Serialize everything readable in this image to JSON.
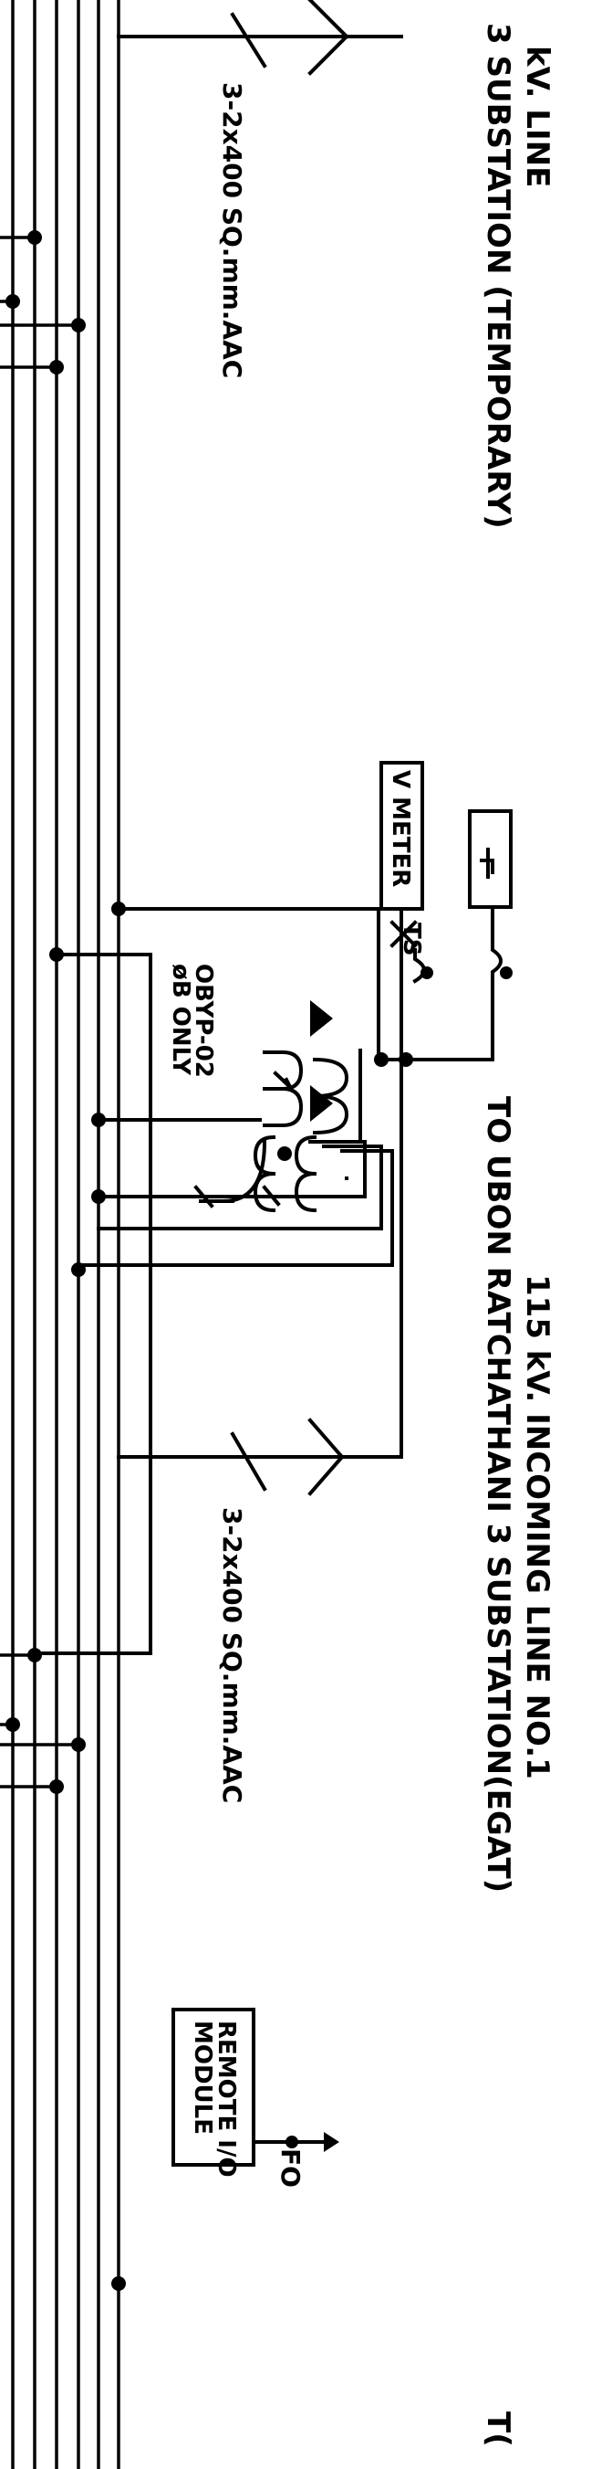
{
  "labels": {
    "line_kv_top": "kV. LINE",
    "substation_temp": "3 SUBSTATION (TEMPORARY)",
    "conductor_1": "3-2x400 SQ.mm.AAC",
    "incoming_line": "115 kV. INCOMING LINE NO.1",
    "to_ubon": "TO UBON RATCHATHANI 3 SUBSTATION(EGAT)",
    "conductor_2": "3-2x400 SQ.mm.AAC",
    "v_meter": "V METER",
    "ts": "TS",
    "obyp": "OBYP-02",
    "phase_only": "øB ONLY",
    "remote_io_1": "REMOTE I/O",
    "remote_io_2": "MODULE",
    "fo": "FO",
    "edge_text": "T("
  },
  "icons": {
    "lightning_arrester": "lightning-arrester-triangle-icon",
    "current_transformer": "ct-coil-icon",
    "fuse": "fuse-icon",
    "relay": "relay-box-icon"
  }
}
